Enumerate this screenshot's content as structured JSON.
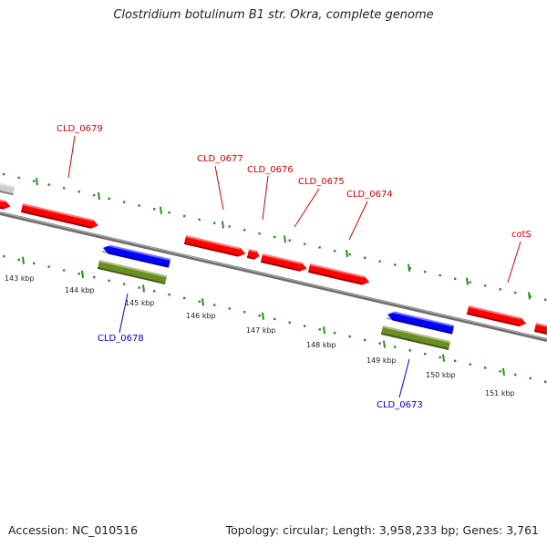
{
  "title": "Clostridium botulinum B1 str. Okra, complete genome",
  "footer": {
    "accession": "Accession: NC_010516",
    "summary": "Topology: circular; Length: 3,958,233 bp; Genes: 3,761"
  },
  "colors": {
    "forward_gene": "#ff0000",
    "reverse_gene": "#0000ff",
    "rna_bar": "#6b8e23",
    "unknown_gene": "#cccccc",
    "tick": "#2e8b22",
    "backbone": "#808080",
    "forward_label": "#cc0000",
    "reverse_label": "#0000cc"
  },
  "scale_labels": [
    "143 kbp",
    "144 kbp",
    "145 kbp",
    "146 kbp",
    "147 kbp",
    "148 kbp",
    "149 kbp",
    "150 kbp",
    "151 kbp"
  ],
  "forward_labels": [
    "CLD_0679",
    "CLD_0677",
    "CLD_0676",
    "CLD_0675",
    "CLD_0674",
    "cotS"
  ],
  "reverse_labels": [
    "CLD_0678",
    "CLD_0673"
  ]
}
